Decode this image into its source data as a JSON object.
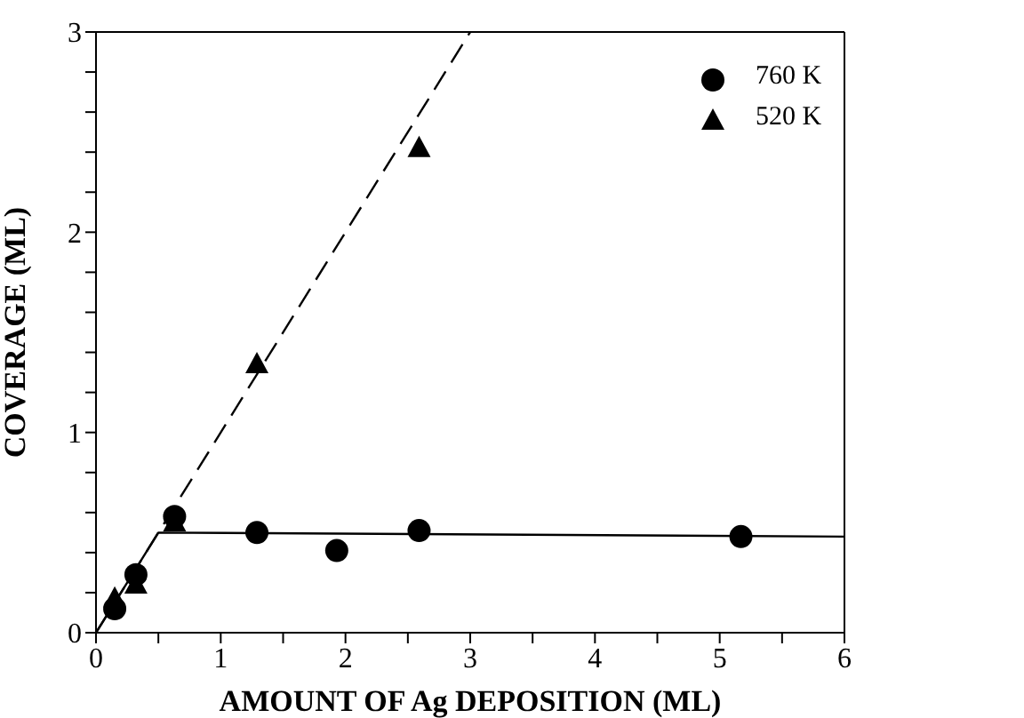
{
  "chart_data": {
    "type": "scatter",
    "xlabel": "AMOUNT OF Ag DEPOSITION (ML)",
    "ylabel": "COVERAGE (ML)",
    "xlim": [
      0,
      6
    ],
    "ylim": [
      0,
      3
    ],
    "xticks": [
      0,
      {
        "value": 0.5,
        "label": null
      },
      1,
      {
        "value": 1.5,
        "label": null
      },
      2,
      {
        "value": 2.5,
        "label": null
      },
      3,
      {
        "value": 3.5,
        "label": null
      },
      4,
      {
        "value": 4.5,
        "label": null
      },
      5,
      {
        "value": 5.5,
        "label": null
      },
      6
    ],
    "yticks": [
      0,
      {
        "value": 0.2,
        "label": null
      },
      {
        "value": 0.4,
        "label": null
      },
      {
        "value": 0.6,
        "label": null
      },
      {
        "value": 0.8,
        "label": null
      },
      1,
      {
        "value": 1.2,
        "label": null
      },
      {
        "value": 1.4,
        "label": null
      },
      {
        "value": 1.6,
        "label": null
      },
      {
        "value": 1.8,
        "label": null
      },
      2,
      {
        "value": 2.2,
        "label": null
      },
      {
        "value": 2.4,
        "label": null
      },
      {
        "value": 2.6,
        "label": null
      },
      {
        "value": 2.8,
        "label": null
      },
      3
    ],
    "legend": "top right",
    "series": [
      {
        "name": "760 K",
        "marker": "circle",
        "color": "#000000",
        "x": [
          0.15,
          0.32,
          0.63,
          1.29,
          1.93,
          2.59,
          5.17
        ],
        "values": [
          0.12,
          0.29,
          0.58,
          0.5,
          0.41,
          0.51,
          0.48
        ]
      },
      {
        "name": "520 K",
        "marker": "triangle",
        "color": "#000000",
        "x": [
          0.15,
          0.32,
          0.63,
          1.29,
          2.59
        ],
        "values": [
          0.17,
          0.24,
          0.55,
          1.34,
          2.42
        ]
      },
      {
        "type": "line",
        "line_style": "solid",
        "marker": "none",
        "color": "#000000",
        "x": [
          0,
          0.5,
          6
        ],
        "values": [
          0,
          0.5,
          0.48
        ]
      },
      {
        "type": "line",
        "line_style": "dashed",
        "marker": "none",
        "color": "#000000",
        "x": [
          0,
          3
        ],
        "values": [
          0,
          3
        ]
      }
    ]
  }
}
